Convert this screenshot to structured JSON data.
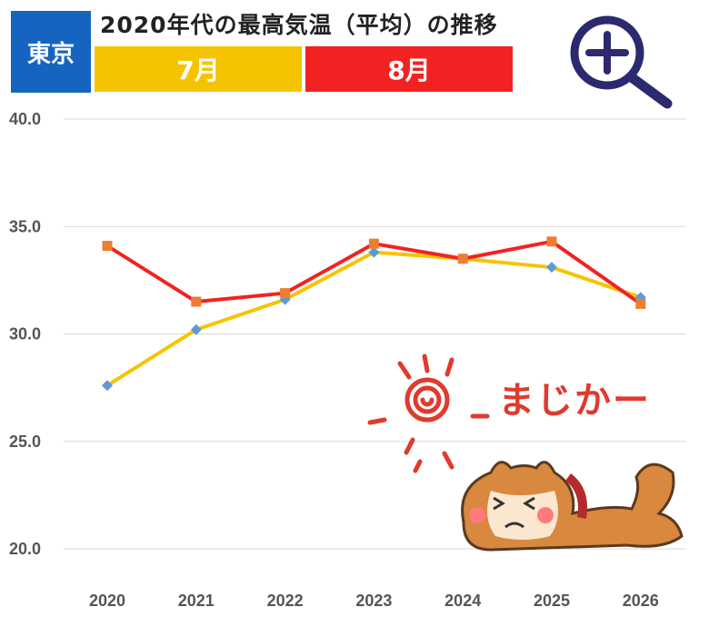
{
  "header": {
    "city": "東京",
    "title": "2020年代の最高気温（平均）の推移",
    "legend_july": "7月",
    "legend_august": "8月"
  },
  "illustration": {
    "caption": "まじかー"
  },
  "icons": {
    "zoom": "zoom-in-icon",
    "sun": "sun-icon",
    "dog": "dog-illustration"
  },
  "colors": {
    "city_badge": "#1565c0",
    "july": "#f5c400",
    "august": "#f22222",
    "july_marker": "#5b9bd5",
    "august_marker": "#ed7d31",
    "zoom_icon": "#2b2a6e",
    "grid": "#d9d9d9"
  },
  "chart_data": {
    "type": "line",
    "categories": [
      "2020",
      "2021",
      "2022",
      "2023",
      "2024",
      "2025",
      "2026"
    ],
    "series": [
      {
        "name": "7月",
        "values": [
          27.6,
          30.2,
          31.6,
          33.8,
          33.5,
          33.1,
          31.7
        ]
      },
      {
        "name": "8月",
        "values": [
          34.1,
          31.5,
          31.9,
          34.2,
          33.5,
          34.3,
          31.4
        ]
      }
    ],
    "yticks": [
      "40.0",
      "35.0",
      "30.0",
      "25.0",
      "20.0"
    ],
    "ylim": [
      20,
      40
    ],
    "grid": true,
    "legend": "top"
  }
}
